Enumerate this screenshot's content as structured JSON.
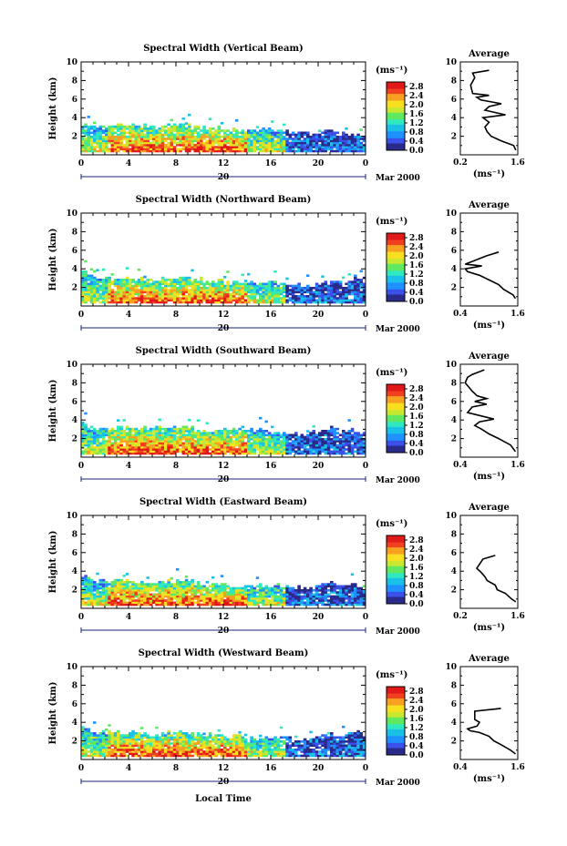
{
  "chart_data": {
    "type": "heatmap",
    "xlabel": "Local Time",
    "date_label": "Mar 2000",
    "date_day": "20",
    "ylabel": "Height (km)",
    "xlim": [
      0,
      24
    ],
    "ylim": [
      0,
      10
    ],
    "x_ticks": [
      "0",
      "4",
      "8",
      "12",
      "16",
      "20",
      "0"
    ],
    "y_ticks": [
      "2",
      "4",
      "6",
      "8",
      "10"
    ],
    "colorbar": {
      "unit_label": "(ms⁻¹)",
      "ticks": [
        "2.8",
        "2.4",
        "2.0",
        "1.6",
        "1.2",
        "0.8",
        "0.4",
        "0.0"
      ],
      "range": [
        0,
        3.0
      ],
      "colors": [
        "#2a2a8a",
        "#3a50e8",
        "#1e90ff",
        "#19c0e8",
        "#2ee8c0",
        "#60e860",
        "#c8e830",
        "#f8e020",
        "#f8a020",
        "#f04020",
        "#e01818"
      ]
    },
    "average_panel": {
      "title": "Average",
      "unit_label": "(ms⁻¹)",
      "y_ticks": [
        "2",
        "4",
        "6",
        "8",
        "10"
      ]
    },
    "panels": [
      {
        "name": "vertical",
        "title": "Spectral Width (Vertical Beam)",
        "avg_xlim": [
          0.2,
          1.6
        ],
        "avg_x_ticks": [
          "0.2",
          "1.6"
        ],
        "echo_top_km": [
          3.3,
          3.1,
          3.0,
          3.1,
          3.2,
          3.1,
          3.0,
          3.1,
          3.2,
          3.1,
          2.9,
          2.8,
          2.8,
          2.6,
          2.4,
          2.5,
          2.7,
          2.4,
          2.3,
          2.2,
          2.3,
          2.6,
          2.2,
          2.0,
          1.9
        ],
        "avg_profile": [
          [
            1.55,
            0.5
          ],
          [
            1.5,
            1.0
          ],
          [
            1.2,
            1.5
          ],
          [
            0.95,
            2.0
          ],
          [
            0.85,
            2.5
          ],
          [
            0.8,
            3.0
          ],
          [
            0.9,
            3.5
          ],
          [
            0.75,
            4.0
          ],
          [
            1.3,
            4.3
          ],
          [
            0.8,
            4.8
          ],
          [
            0.9,
            5.2
          ],
          [
            1.2,
            5.5
          ],
          [
            0.7,
            5.9
          ],
          [
            0.6,
            6.2
          ],
          [
            0.9,
            6.4
          ],
          [
            0.5,
            6.6
          ],
          [
            0.45,
            7.5
          ],
          [
            0.55,
            8.3
          ],
          [
            0.5,
            8.8
          ],
          [
            0.9,
            9.1
          ]
        ]
      },
      {
        "name": "northward",
        "title": "Spectral Width (Northward Beam)",
        "avg_xlim": [
          0.4,
          1.6
        ],
        "avg_x_ticks": [
          "0.4",
          "1.6"
        ],
        "echo_top_km": [
          3.5,
          3.0,
          2.9,
          3.0,
          3.0,
          2.9,
          2.8,
          2.9,
          3.0,
          2.9,
          2.7,
          2.6,
          2.5,
          2.4,
          2.3,
          2.4,
          2.5,
          2.3,
          2.2,
          2.1,
          2.4,
          2.8,
          2.3,
          3.0,
          3.2
        ],
        "avg_profile": [
          [
            1.55,
            0.8
          ],
          [
            1.5,
            1.2
          ],
          [
            1.3,
            1.8
          ],
          [
            1.2,
            2.3
          ],
          [
            1.0,
            2.8
          ],
          [
            0.8,
            3.3
          ],
          [
            0.55,
            3.7
          ],
          [
            0.5,
            4.0
          ],
          [
            0.85,
            4.3
          ],
          [
            0.5,
            4.5
          ],
          [
            0.95,
            5.4
          ],
          [
            1.2,
            5.8
          ]
        ]
      },
      {
        "name": "southward",
        "title": "Spectral Width (Southward Beam)",
        "avg_xlim": [
          0.4,
          1.6
        ],
        "avg_x_ticks": [
          "0.4",
          "1.6"
        ],
        "echo_top_km": [
          3.6,
          3.1,
          3.0,
          3.1,
          3.1,
          3.2,
          3.0,
          3.1,
          3.2,
          3.0,
          2.8,
          2.7,
          2.8,
          2.9,
          3.0,
          3.1,
          2.6,
          2.4,
          2.3,
          2.4,
          2.6,
          3.1,
          2.6,
          2.8,
          2.5
        ],
        "avg_profile": [
          [
            1.55,
            0.6
          ],
          [
            1.45,
            1.3
          ],
          [
            1.2,
            2.0
          ],
          [
            1.0,
            2.5
          ],
          [
            0.85,
            3.0
          ],
          [
            0.7,
            3.4
          ],
          [
            0.8,
            3.8
          ],
          [
            1.1,
            4.1
          ],
          [
            0.55,
            4.8
          ],
          [
            0.65,
            5.4
          ],
          [
            0.95,
            5.7
          ],
          [
            0.7,
            6.0
          ],
          [
            0.95,
            6.3
          ],
          [
            0.75,
            6.6
          ],
          [
            0.65,
            7.1
          ],
          [
            0.5,
            8.0
          ],
          [
            0.55,
            8.6
          ],
          [
            0.65,
            8.9
          ],
          [
            0.9,
            9.4
          ]
        ]
      },
      {
        "name": "eastward",
        "title": "Spectral Width (Eastward Beam)",
        "avg_xlim": [
          0.2,
          1.6
        ],
        "avg_x_ticks": [
          "0.2",
          "1.6"
        ],
        "echo_top_km": [
          3.3,
          2.9,
          2.8,
          2.9,
          2.8,
          2.8,
          2.7,
          2.8,
          2.9,
          2.8,
          2.6,
          2.5,
          2.4,
          2.3,
          2.2,
          2.3,
          2.4,
          2.3,
          2.2,
          2.1,
          2.3,
          2.7,
          2.3,
          2.4,
          2.0
        ],
        "avg_profile": [
          [
            1.55,
            0.7
          ],
          [
            1.45,
            1.0
          ],
          [
            1.3,
            1.6
          ],
          [
            1.1,
            2.0
          ],
          [
            1.05,
            2.5
          ],
          [
            0.85,
            3.0
          ],
          [
            0.8,
            3.4
          ],
          [
            0.7,
            3.9
          ],
          [
            0.6,
            4.3
          ],
          [
            0.75,
            5.3
          ],
          [
            1.05,
            5.7
          ]
        ]
      },
      {
        "name": "westward",
        "title": "Spectral Width (Westward Beam)",
        "avg_xlim": [
          0.4,
          1.6
        ],
        "avg_x_ticks": [
          "0.4",
          "1.6"
        ],
        "echo_top_km": [
          3.4,
          2.9,
          2.8,
          2.9,
          2.9,
          2.8,
          2.7,
          2.8,
          2.9,
          2.8,
          2.6,
          2.5,
          2.4,
          2.3,
          2.2,
          2.3,
          2.4,
          2.2,
          2.1,
          2.1,
          2.3,
          2.7,
          2.5,
          3.0,
          2.6
        ],
        "avg_profile": [
          [
            1.55,
            0.6
          ],
          [
            1.45,
            1.0
          ],
          [
            1.25,
            1.6
          ],
          [
            1.1,
            2.0
          ],
          [
            1.0,
            2.5
          ],
          [
            0.8,
            2.9
          ],
          [
            0.6,
            3.1
          ],
          [
            0.55,
            3.3
          ],
          [
            0.75,
            3.6
          ],
          [
            0.8,
            4.0
          ],
          [
            0.7,
            4.3
          ],
          [
            0.7,
            5.2
          ],
          [
            1.25,
            5.5
          ]
        ]
      }
    ]
  }
}
